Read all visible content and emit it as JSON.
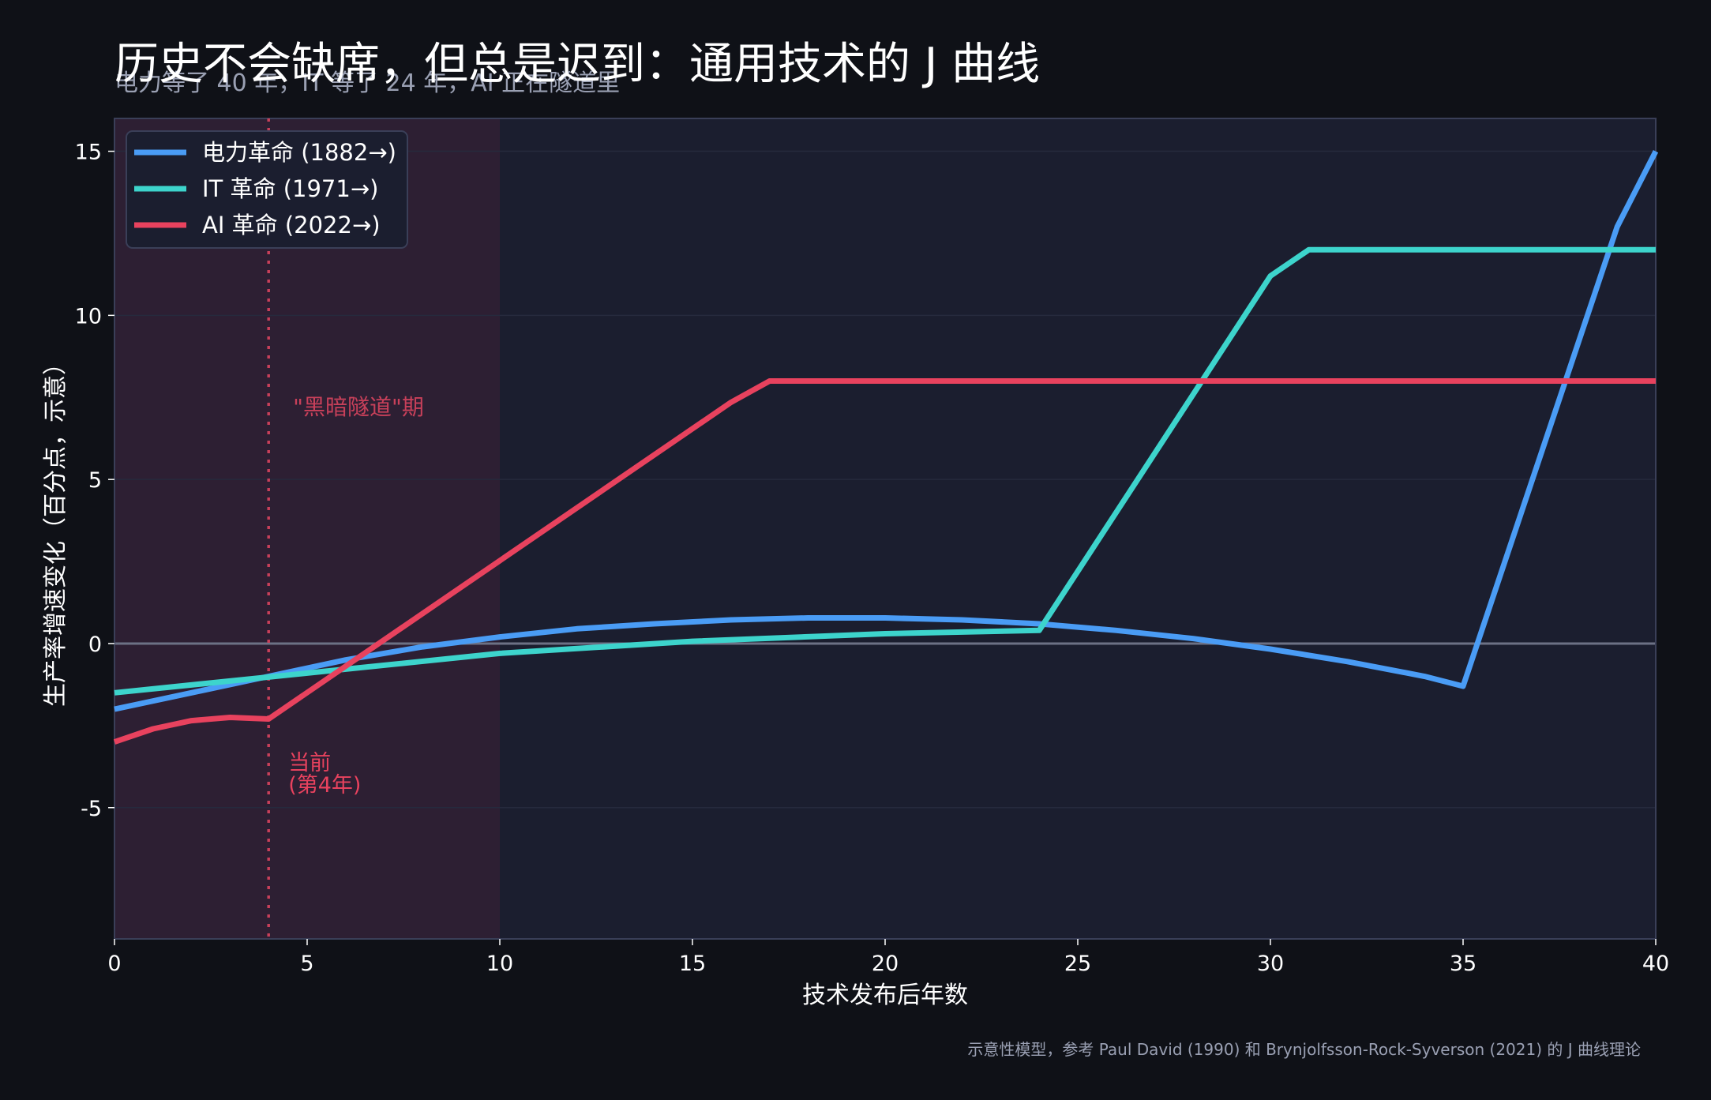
{
  "title": "历史不会缺席，但总是迟到：通用技术的 J 曲线",
  "subtitle": "电力等了 40 年，IT 等了 24 年，AI 正在隧道里",
  "footnote": "示意性模型，参考 Paul David (1990) 和 Brynjolfsson-Rock-Syverson (2021) 的 J 曲线理论",
  "colors": {
    "background": "#0f1117",
    "plot_background": "#1b1e2f",
    "tunnel_shade": "#2d1f33",
    "text": "#ffffff",
    "muted_text": "#9aa0b3",
    "electric": "#4a9cf5",
    "it": "#3dd4cc",
    "ai": "#e8425e",
    "annotation": "#c8405a"
  },
  "chart_data": {
    "type": "line",
    "xlabel": "技术发布后年数",
    "ylabel": "生产率增速变化（百分点，示意）",
    "xlim": [
      0,
      40
    ],
    "ylim": [
      -9,
      16
    ],
    "x_ticks": [
      0,
      5,
      10,
      15,
      20,
      25,
      30,
      35,
      40
    ],
    "y_ticks": [
      -5,
      0,
      5,
      10,
      15
    ],
    "y_tick_labels": [
      "-5",
      "0",
      "5",
      "10",
      "15"
    ],
    "grid": true,
    "legend_position": "top-left",
    "series": [
      {
        "name": "电力革命 (1882→)",
        "color_key": "electric",
        "points": [
          [
            0,
            -2.0
          ],
          [
            2,
            -1.5
          ],
          [
            4,
            -1.0
          ],
          [
            6,
            -0.5
          ],
          [
            8,
            -0.1
          ],
          [
            10,
            0.2
          ],
          [
            12,
            0.45
          ],
          [
            14,
            0.6
          ],
          [
            16,
            0.72
          ],
          [
            18,
            0.78
          ],
          [
            20,
            0.78
          ],
          [
            22,
            0.72
          ],
          [
            24,
            0.6
          ],
          [
            26,
            0.4
          ],
          [
            28,
            0.15
          ],
          [
            30,
            -0.17
          ],
          [
            32,
            -0.55
          ],
          [
            34,
            -1.0
          ],
          [
            35,
            -1.3
          ],
          [
            39,
            12.7
          ],
          [
            40,
            15.0
          ]
        ]
      },
      {
        "name": "IT 革命 (1971→)",
        "color_key": "it",
        "points": [
          [
            0,
            -1.5
          ],
          [
            5,
            -0.9
          ],
          [
            10,
            -0.3
          ],
          [
            15,
            0.07
          ],
          [
            20,
            0.3
          ],
          [
            24,
            0.4
          ],
          [
            30,
            11.2
          ],
          [
            31,
            12.0
          ],
          [
            40,
            12.0
          ]
        ]
      },
      {
        "name": "AI 革命 (2022→)",
        "color_key": "ai",
        "points": [
          [
            0,
            -3.0
          ],
          [
            1,
            -2.6
          ],
          [
            2,
            -2.35
          ],
          [
            3,
            -2.25
          ],
          [
            4,
            -2.3
          ],
          [
            16,
            7.35
          ],
          [
            17,
            8.0
          ],
          [
            40,
            8.0
          ]
        ]
      }
    ],
    "shaded_region": {
      "x_range": [
        0,
        10
      ],
      "label": "\"黑暗隧道\"期"
    },
    "vline": {
      "x": 4,
      "label_line1": "当前",
      "label_line2": "(第4年)"
    }
  }
}
